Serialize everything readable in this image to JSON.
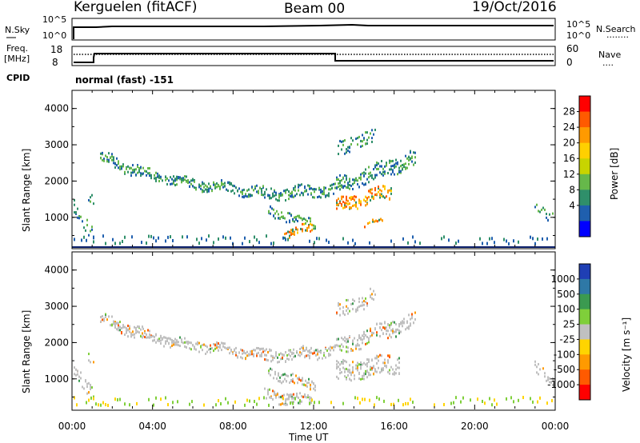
{
  "header": {
    "station": "Kerguelen (fitACF)",
    "beam": "Beam 00",
    "date": "19/Oct/2016"
  },
  "panels": {
    "sky": {
      "left_label": "N.Sky",
      "left_ticks": [
        "10^5",
        "10^0"
      ],
      "right_ticks": [
        "10^5",
        "10^0"
      ],
      "right_label": "N.Search",
      "right_legend": "........"
    },
    "freq": {
      "left_label_1": "Freq.",
      "left_label_2": "[MHz]",
      "left_ticks": [
        "18",
        "8"
      ],
      "right_ticks": [
        "60",
        "0"
      ],
      "right_label": "Nave",
      "right_legend": "....",
      "cpid_label": "CPID",
      "cpid_text": "normal (fast) -151"
    }
  },
  "chart_data": [
    {
      "type": "heatmap",
      "title": "",
      "ylabel": "Slant Range [km]",
      "xlabel": "",
      "yticks": [
        "1000",
        "2000",
        "3000",
        "4000"
      ],
      "ylim": [
        180,
        4500
      ],
      "xlim_hours": [
        0,
        24
      ],
      "colorbar_label": "Power [dB]",
      "colorbar_ticks": [
        "28",
        "24",
        "20",
        "16",
        "12",
        "8",
        "4"
      ],
      "colorbar_colors": [
        "#ff0000",
        "#ff5a00",
        "#ff9a00",
        "#ffd000",
        "#c8d400",
        "#66b84a",
        "#2f8f6a",
        "#1f5fae",
        "#0000ff"
      ]
    },
    {
      "type": "heatmap",
      "title": "",
      "ylabel": "Slant Range [km]",
      "xlabel": "Time UT",
      "yticks": [
        "1000",
        "2000",
        "3000",
        "4000"
      ],
      "ylim": [
        180,
        4500
      ],
      "xlim_hours": [
        0,
        24
      ],
      "xticks": [
        "00:00",
        "04:00",
        "08:00",
        "12:00",
        "16:00",
        "20:00",
        "00:00"
      ],
      "colorbar_label": "Velocity [m s⁻¹]",
      "colorbar_ticks": [
        "1000",
        "500",
        "100",
        "25",
        "-25",
        "-100",
        "-500",
        "-1000"
      ],
      "colorbar_colors": [
        "#1f3fb4",
        "#2e78a6",
        "#3b9a50",
        "#7fcf3a",
        "#c0c0c0",
        "#ffd400",
        "#ff9a00",
        "#ff5a00",
        "#ff0000"
      ]
    }
  ]
}
